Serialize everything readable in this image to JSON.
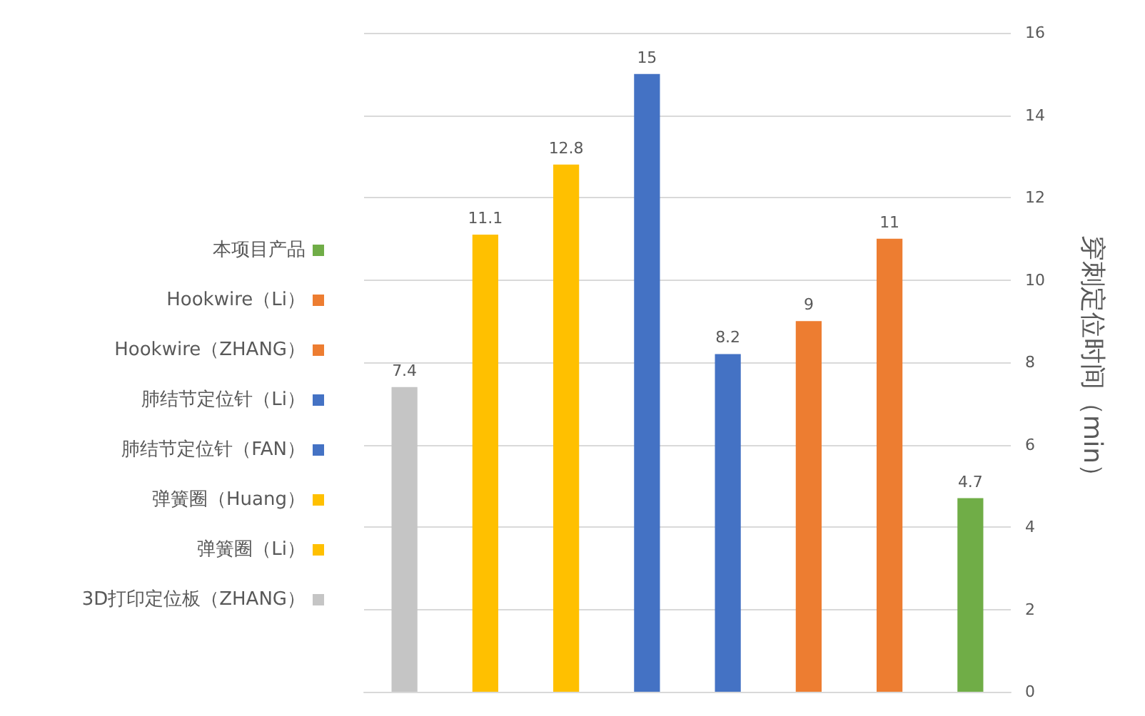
{
  "chart_data": {
    "type": "bar",
    "ylabel": "穿刺定位时间（min）",
    "categories": [
      null,
      null,
      null,
      null,
      null,
      null,
      null,
      null
    ],
    "series": [
      {
        "name": "本项目产品",
        "color": "#70ad47",
        "values": [
          null,
          null,
          null,
          null,
          null,
          null,
          null,
          4.7
        ]
      },
      {
        "name": "Hookwire（Li）",
        "color": "#ed7d31",
        "values": [
          null,
          null,
          null,
          null,
          null,
          null,
          11,
          null
        ]
      },
      {
        "name": "Hookwire（ZHANG）",
        "color": "#ed7d31",
        "values": [
          null,
          null,
          null,
          null,
          null,
          9,
          null,
          null
        ]
      },
      {
        "name": "肺结节定位针（Li）",
        "color": "#4472c4",
        "values": [
          null,
          null,
          null,
          null,
          8.2,
          null,
          null,
          null
        ]
      },
      {
        "name": "肺结节定位针（FAN）",
        "color": "#4472c4",
        "values": [
          null,
          null,
          null,
          15,
          null,
          null,
          null,
          null
        ]
      },
      {
        "name": "弹簧圈（Huang）",
        "color": "#ffc000",
        "values": [
          null,
          null,
          12.8,
          null,
          null,
          null,
          null,
          null
        ]
      },
      {
        "name": "弹簧圈（Li）",
        "color": "#ffc000",
        "values": [
          null,
          11.1,
          null,
          null,
          null,
          null,
          null,
          null
        ]
      },
      {
        "name": "3D打印定位板（ZHANG）",
        "color": "#c5c5c5",
        "values": [
          7.4,
          null,
          null,
          null,
          null,
          null,
          null,
          null
        ]
      }
    ],
    "ylim": [
      0,
      16
    ],
    "yticks": [
      0,
      2,
      4,
      6,
      8,
      10,
      12,
      14,
      16
    ],
    "grid": "y",
    "legend": "left",
    "data_labels": true
  }
}
